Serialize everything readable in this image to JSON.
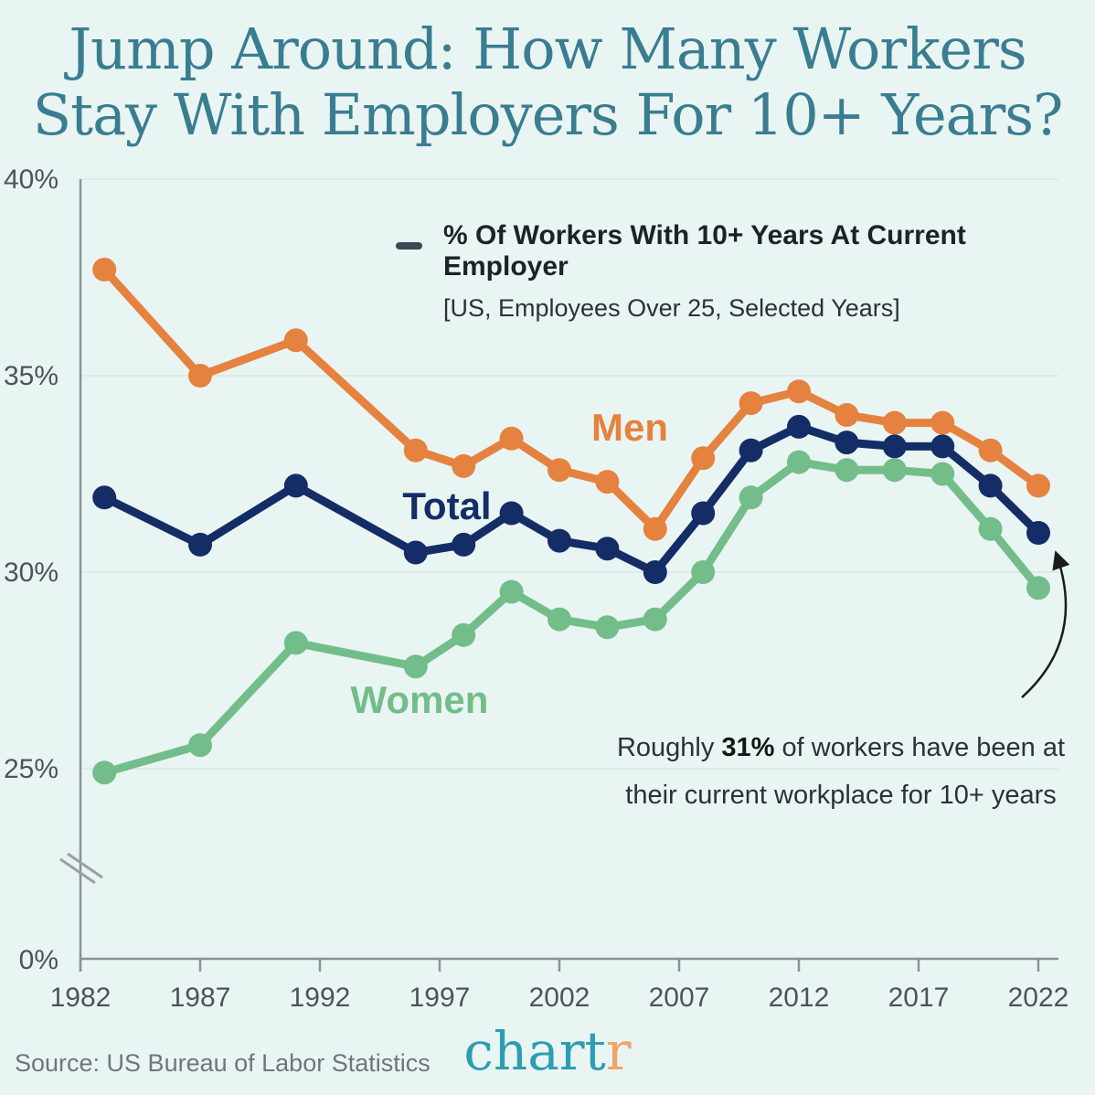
{
  "title": {
    "line1": "Jump Around: How Many Workers",
    "line2": "Stay With Employers For 10+ Years?"
  },
  "legend": {
    "dash_color": "#3e4a52"
  },
  "annotation": {
    "prefix": "Roughly ",
    "highlight": "31%",
    "suffix": " of workers have been at",
    "line2": "their current workplace for 10+ years"
  },
  "footer": {
    "source": "Source: US Bureau of Labor Statistics",
    "logo_main": "chart",
    "logo_accent": "r"
  },
  "chart_data": {
    "type": "line",
    "title": "% Of Workers With 10+ Years At Current Employer",
    "subtitle": "[US, Employees Over 25, Selected Years]",
    "x": [
      1983,
      1987,
      1991,
      1996,
      1998,
      2000,
      2002,
      2004,
      2006,
      2008,
      2010,
      2012,
      2014,
      2016,
      2018,
      2020,
      2022
    ],
    "x_ticks": [
      1982,
      1987,
      1992,
      1997,
      2002,
      2007,
      2012,
      2017,
      2022
    ],
    "y_ticks": [
      40,
      35,
      30,
      25,
      0
    ],
    "y_unit": "%",
    "y_axis_break_between": [
      0,
      25
    ],
    "grid": true,
    "legend_position": "top-center",
    "series": [
      {
        "name": "Men",
        "color": "#e5823f",
        "values": [
          37.7,
          35.0,
          35.9,
          33.1,
          32.7,
          33.4,
          32.6,
          32.3,
          31.1,
          32.9,
          34.3,
          34.6,
          34.0,
          33.8,
          33.8,
          33.1,
          32.2
        ]
      },
      {
        "name": "Total",
        "color": "#142d66",
        "values": [
          31.9,
          30.7,
          32.2,
          30.5,
          30.7,
          31.5,
          30.8,
          30.6,
          30.0,
          31.5,
          33.1,
          33.7,
          33.3,
          33.2,
          33.2,
          32.2,
          31.0
        ]
      },
      {
        "name": "Women",
        "color": "#73bd8a",
        "values": [
          24.9,
          25.6,
          28.2,
          27.6,
          28.4,
          29.5,
          28.8,
          28.6,
          28.8,
          30.0,
          31.9,
          32.8,
          32.6,
          32.6,
          32.5,
          31.1,
          29.6
        ]
      }
    ]
  }
}
